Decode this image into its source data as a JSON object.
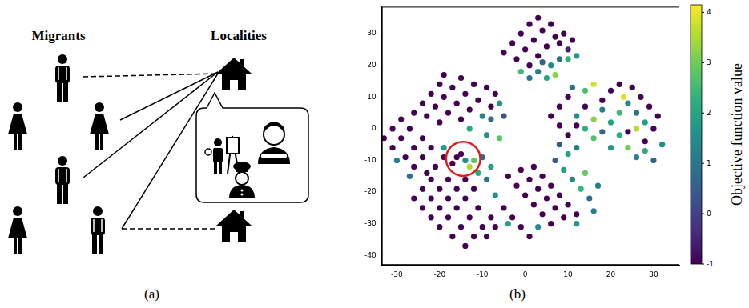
{
  "diagram": {
    "panel_label": "(a)",
    "left_title": "Migrants",
    "right_title": "Localities"
  },
  "chart_data": {
    "type": "scatter",
    "panel_label": "(b)",
    "xlim": [
      -33.5,
      36
    ],
    "ylim": [
      -43,
      38.5
    ],
    "xticks": [
      -30,
      -20,
      -10,
      0,
      10,
      20,
      30
    ],
    "yticks": [
      -40,
      -30,
      -20,
      -10,
      0,
      10,
      20,
      30
    ],
    "grid": false,
    "colorbar": {
      "label": "Objective function value",
      "range": [
        -1,
        4.15
      ],
      "ticks": [
        -1,
        0,
        1,
        2,
        3,
        4
      ]
    },
    "highlight": {
      "x": -14.5,
      "y": -9.5,
      "radius": 4
    },
    "points": [
      [
        -5,
        24,
        -1
      ],
      [
        -3,
        27,
        -1
      ],
      [
        -1,
        30,
        -1
      ],
      [
        1,
        33,
        -1
      ],
      [
        3,
        35,
        -1
      ],
      [
        -2,
        22,
        -1
      ],
      [
        0,
        25,
        -1
      ],
      [
        2,
        28,
        -1
      ],
      [
        4,
        31,
        -1
      ],
      [
        6,
        33,
        -1
      ],
      [
        1,
        20,
        -1
      ],
      [
        3,
        23,
        -1
      ],
      [
        5,
        26,
        -1
      ],
      [
        7,
        29,
        -1
      ],
      [
        9,
        30,
        -1
      ],
      [
        8,
        27,
        -1
      ],
      [
        11,
        28,
        -1
      ],
      [
        10,
        25,
        -0.6
      ],
      [
        3,
        18,
        1.2
      ],
      [
        5,
        16,
        2.0
      ],
      [
        6,
        20,
        1.5
      ],
      [
        8,
        22,
        0.9
      ],
      [
        10,
        22,
        2.3
      ],
      [
        12,
        23,
        1.8
      ],
      [
        4,
        21,
        0.5
      ],
      [
        7,
        17,
        3.2
      ],
      [
        -1,
        18,
        2.5
      ],
      [
        1,
        16,
        1.0
      ],
      [
        -26,
        5,
        -1
      ],
      [
        -24,
        8,
        -1
      ],
      [
        -22,
        11,
        -1
      ],
      [
        -20,
        14,
        -1
      ],
      [
        -19,
        17,
        -1
      ],
      [
        -23,
        4,
        -1
      ],
      [
        -21,
        7,
        -1
      ],
      [
        -19,
        10,
        -1
      ],
      [
        -17,
        13,
        -1
      ],
      [
        -15,
        16,
        -1
      ],
      [
        -20,
        2,
        -1
      ],
      [
        -18,
        5,
        -1
      ],
      [
        -16,
        8,
        -1
      ],
      [
        -14,
        11,
        -1
      ],
      [
        -12,
        14,
        -1
      ],
      [
        -9,
        13,
        -1
      ],
      [
        -7,
        11,
        -1
      ],
      [
        -11,
        9,
        -1
      ],
      [
        -13,
        6,
        -1
      ],
      [
        -15,
        3,
        -1
      ],
      [
        -8,
        7,
        -1
      ],
      [
        -10,
        4,
        1.3
      ],
      [
        -8,
        3,
        0.8
      ],
      [
        -6,
        8,
        1.6
      ],
      [
        -13,
        0,
        2.2
      ],
      [
        -9,
        -2,
        1.5
      ],
      [
        -6,
        -3,
        2.8
      ],
      [
        -5,
        4,
        0.4
      ],
      [
        -33,
        -3,
        -1
      ],
      [
        -31,
        0,
        -1
      ],
      [
        -29,
        3,
        -1
      ],
      [
        -31,
        -6,
        -1
      ],
      [
        -29,
        -3,
        -1
      ],
      [
        -27,
        0,
        -1
      ],
      [
        -28,
        -9,
        -1
      ],
      [
        -26,
        -6,
        -1
      ],
      [
        -24,
        -3,
        -1
      ],
      [
        -26,
        -12,
        -1
      ],
      [
        -24,
        -9,
        -1
      ],
      [
        -22,
        -6,
        -1
      ],
      [
        -21,
        -12,
        -1
      ],
      [
        -19,
        -9,
        -1
      ],
      [
        -23,
        -14,
        -1
      ],
      [
        -30,
        -10,
        1.2
      ],
      [
        -27,
        -15,
        0.9
      ],
      [
        -19,
        -6,
        1.8
      ],
      [
        -26,
        -22,
        -1
      ],
      [
        -24,
        -19,
        -1
      ],
      [
        -22,
        -16,
        -1
      ],
      [
        -24,
        -25,
        -1
      ],
      [
        -22,
        -22,
        -1
      ],
      [
        -20,
        -19,
        -1
      ],
      [
        -18,
        -16,
        -1
      ],
      [
        -22,
        -28,
        -1
      ],
      [
        -20,
        -25,
        -1
      ],
      [
        -18,
        -22,
        -1
      ],
      [
        -16,
        -19,
        -1
      ],
      [
        -14,
        -16,
        -1
      ],
      [
        -20,
        -31,
        -1
      ],
      [
        -18,
        -28,
        -1
      ],
      [
        -16,
        -25,
        -1
      ],
      [
        -14,
        -22,
        -1
      ],
      [
        -12,
        -19,
        -1
      ],
      [
        -17,
        -34,
        -1
      ],
      [
        -15,
        -31,
        -1
      ],
      [
        -13,
        -28,
        -1
      ],
      [
        -11,
        -25,
        -1
      ],
      [
        -14,
        -37,
        -1
      ],
      [
        -12,
        -34,
        -1
      ],
      [
        -10,
        -31,
        -1
      ],
      [
        -8,
        -28,
        -1
      ],
      [
        -9,
        -34,
        -1
      ],
      [
        -7,
        -31,
        -1
      ],
      [
        -16,
        -9,
        -1
      ],
      [
        -14,
        -10,
        1.5
      ],
      [
        -13,
        -12,
        3.5
      ],
      [
        -17,
        -11,
        -1
      ],
      [
        -15,
        -8,
        -1
      ],
      [
        -11,
        -14,
        2.2
      ],
      [
        -9,
        -16,
        1.0
      ],
      [
        -10,
        -9,
        0.7
      ],
      [
        -7,
        -21,
        1.6
      ],
      [
        -12,
        -10,
        2.8
      ],
      [
        -8,
        -12,
        1.9
      ],
      [
        -4,
        -15,
        -1
      ],
      [
        -2,
        -18,
        -1
      ],
      [
        0,
        -21,
        -1
      ],
      [
        2,
        -24,
        -1
      ],
      [
        4,
        -27,
        -1
      ],
      [
        6,
        -30,
        -1
      ],
      [
        -1,
        -13,
        -1
      ],
      [
        1,
        -16,
        -1
      ],
      [
        3,
        -19,
        -1
      ],
      [
        5,
        -22,
        -1
      ],
      [
        7,
        -25,
        -1
      ],
      [
        9,
        -28,
        -1
      ],
      [
        2,
        -12,
        -1
      ],
      [
        4,
        -15,
        -1
      ],
      [
        6,
        -18,
        -1
      ],
      [
        8,
        -21,
        -1
      ],
      [
        10,
        -24,
        -1
      ],
      [
        12,
        -27,
        -1
      ],
      [
        -5,
        -25,
        -1
      ],
      [
        -3,
        -28,
        -1
      ],
      [
        -1,
        -31,
        -1
      ],
      [
        1,
        -34,
        -1
      ],
      [
        11,
        -16,
        1.4
      ],
      [
        13,
        -19,
        2.4
      ],
      [
        15,
        -22,
        0.8
      ],
      [
        9,
        -13,
        1.9
      ],
      [
        14,
        -14,
        2.9
      ],
      [
        17,
        -18,
        1.2
      ],
      [
        7,
        -10,
        0.5
      ],
      [
        12,
        -30,
        1.7
      ],
      [
        16,
        -26,
        1.1
      ],
      [
        -4,
        -30,
        2.0
      ],
      [
        3,
        -31,
        1.5
      ],
      [
        6,
        4,
        -1
      ],
      [
        8,
        7,
        -1
      ],
      [
        10,
        10,
        -1
      ],
      [
        8,
        1,
        -1
      ],
      [
        10,
        -2,
        -1
      ],
      [
        12,
        1,
        -1
      ],
      [
        20,
        12,
        -1
      ],
      [
        22,
        14,
        -1
      ],
      [
        25,
        13,
        -1
      ],
      [
        27,
        10,
        -1
      ],
      [
        29,
        7,
        -1
      ],
      [
        31,
        4,
        -1
      ],
      [
        24,
        -1,
        -1
      ],
      [
        28,
        -4,
        -1
      ],
      [
        30,
        0,
        -1
      ],
      [
        18,
        9,
        -1
      ],
      [
        14,
        7,
        -1
      ],
      [
        12,
        4,
        1.6
      ],
      [
        14,
        0,
        2.3
      ],
      [
        16,
        3,
        3.2
      ],
      [
        18,
        6,
        1.1
      ],
      [
        16,
        -3,
        2.7
      ],
      [
        18,
        -1,
        0.6
      ],
      [
        20,
        2,
        1.9
      ],
      [
        22,
        5,
        2.5
      ],
      [
        24,
        8,
        1.4
      ],
      [
        26,
        5,
        0.9
      ],
      [
        22,
        -2,
        2.2
      ],
      [
        20,
        -6,
        1.7
      ],
      [
        24,
        -6,
        3.0
      ],
      [
        26,
        -9,
        1.3
      ],
      [
        28,
        -7,
        2.1
      ],
      [
        30,
        -10,
        0.7
      ],
      [
        32,
        -5,
        1.5
      ],
      [
        26,
        0,
        3.6
      ],
      [
        28,
        2,
        1.8
      ],
      [
        23,
        10,
        3.9
      ],
      [
        12,
        -6,
        1.2
      ],
      [
        10,
        -8,
        2.0
      ],
      [
        8,
        -5,
        0.4
      ],
      [
        14,
        12,
        2.6
      ],
      [
        16,
        14,
        3.8
      ],
      [
        11,
        13,
        1.0
      ]
    ]
  }
}
